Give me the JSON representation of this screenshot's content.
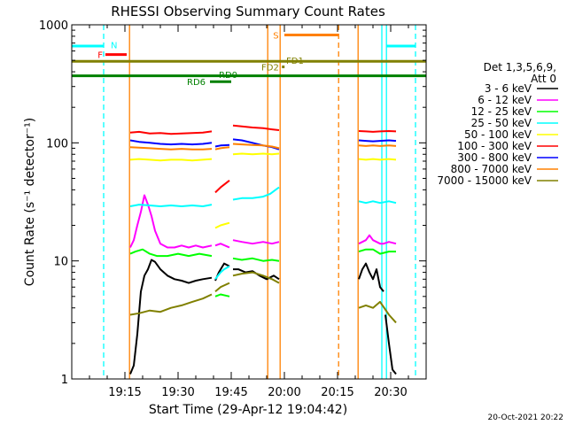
{
  "chart_data": {
    "type": "line",
    "title": "RHESSI Observing Summary Count Rates",
    "xlabel": "Start Time (29-Apr-12 19:04:42)",
    "ylabel": "Count Rate (s⁻¹ detector⁻¹)",
    "y_scale": "log",
    "ylim": [
      1,
      1000
    ],
    "xlim": [
      "19:04:42",
      "20:44:42"
    ],
    "x_ticks": [
      "19:15",
      "19:30",
      "19:45",
      "20:00",
      "20:15",
      "20:30"
    ],
    "x_tick_minutes": [
      15,
      30,
      45,
      60,
      75,
      90
    ],
    "y_ticks": [
      "1",
      "10",
      "100",
      "1000"
    ],
    "y_tick_values": [
      1,
      10,
      100,
      1000
    ],
    "footer": "20-Oct-2021 20:22",
    "legend": {
      "placement": "right",
      "header_lines": [
        "Det 1,3,5,6,9,",
        "Att 0"
      ],
      "items": [
        {
          "label": "3 - 6 keV",
          "color": "#000000"
        },
        {
          "label": "6 - 12 keV",
          "color": "#ff00ff"
        },
        {
          "label": "12 - 25 keV",
          "color": "#00ff00"
        },
        {
          "label": "25 - 50 keV",
          "color": "#00ffff"
        },
        {
          "label": "50 - 100 keV",
          "color": "#ffff00"
        },
        {
          "label": "100 - 300 keV",
          "color": "#ff0000"
        },
        {
          "label": "300 - 800 keV",
          "color": "#0000ff"
        },
        {
          "label": "800 - 7000 keV",
          "color": "#ff8000"
        },
        {
          "label": "7000 - 15000 keV",
          "color": "#808000"
        }
      ]
    },
    "series": [
      {
        "name": "3 - 6 keV",
        "color": "#000000",
        "segments": [
          {
            "x": [
              16.5,
              17.5,
              18.5,
              19.5,
              20.5,
              21.5,
              22.5,
              23.5,
              25,
              27,
              29,
              31,
              33,
              35,
              37,
              39.5
            ],
            "y": [
              1.1,
              1.3,
              2.4,
              5.5,
              7.5,
              8.5,
              10.2,
              9.8,
              8.5,
              7.5,
              7.0,
              6.8,
              6.5,
              6.8,
              7.0,
              7.2
            ]
          },
          {
            "x": [
              40.5,
              41.5,
              43,
              44.5
            ],
            "y": [
              6.8,
              8.0,
              9.5,
              9.0
            ]
          },
          {
            "x": [
              45.5,
              47,
              49,
              51,
              53,
              55,
              57,
              58.5
            ],
            "y": [
              8.5,
              8.5,
              8.0,
              8.2,
              7.5,
              7.0,
              7.5,
              7.0
            ]
          },
          {
            "x": [
              81,
              82,
              83,
              84,
              85,
              86,
              87,
              88
            ],
            "y": [
              7.0,
              8.5,
              9.5,
              8.0,
              7.0,
              8.5,
              6.0,
              5.5
            ]
          },
          {
            "x": [
              88.5,
              89.5,
              90.5,
              91.5
            ],
            "y": [
              3.5,
              2.0,
              1.2,
              1.1
            ]
          }
        ]
      },
      {
        "name": "6 - 12 keV",
        "color": "#ff00ff",
        "segments": [
          {
            "x": [
              16.5,
              17.5,
              18.5,
              19.5,
              20.5,
              21.5,
              22.5,
              23.5,
              25,
              27,
              29,
              31,
              33,
              35,
              37,
              39.5
            ],
            "y": [
              13,
              15,
              20,
              26,
              36,
              30,
              24,
              18,
              14,
              13,
              13,
              13.5,
              13,
              13.5,
              13,
              13.5
            ]
          },
          {
            "x": [
              40.5,
              42,
              44.5
            ],
            "y": [
              13.5,
              14,
              13
            ]
          },
          {
            "x": [
              45.5,
              48,
              51,
              54,
              56.5,
              58.5
            ],
            "y": [
              15,
              14.5,
              14,
              14.5,
              14,
              14.5
            ]
          },
          {
            "x": [
              81,
              82,
              83,
              84,
              85,
              86,
              87,
              88,
              89.5,
              91.5
            ],
            "y": [
              14,
              14.5,
              15,
              16.5,
              15,
              14.5,
              14,
              14,
              14.5,
              14
            ]
          }
        ]
      },
      {
        "name": "12 - 25 keV",
        "color": "#00ff00",
        "segments": [
          {
            "x": [
              16.5,
              18,
              20,
              22,
              24,
              27,
              30,
              33,
              36,
              39.5
            ],
            "y": [
              11.5,
              12,
              12.5,
              11.5,
              11,
              11,
              11.5,
              11,
              11.5,
              11
            ]
          },
          {
            "x": [
              40.5,
              42,
              44.5
            ],
            "y": [
              5.0,
              5.2,
              5.0
            ]
          },
          {
            "x": [
              45.5,
              48,
              51,
              54,
              56.5,
              58.5
            ],
            "y": [
              10.5,
              10.2,
              10.5,
              10,
              10.2,
              10
            ]
          },
          {
            "x": [
              81,
              83,
              85,
              87,
              89.5,
              91.5
            ],
            "y": [
              12,
              12.5,
              12.5,
              11.5,
              12,
              12
            ]
          }
        ]
      },
      {
        "name": "25 - 50 keV",
        "color": "#00ffff",
        "segments": [
          {
            "x": [
              16.5,
              19,
              22,
              25,
              28,
              31,
              34,
              37,
              39.5
            ],
            "y": [
              29,
              30,
              29.5,
              29,
              29.5,
              29,
              29.5,
              29,
              30
            ]
          },
          {
            "x": [
              40.5,
              42,
              43,
              44.5
            ],
            "y": [
              7.0,
              8.0,
              8.5,
              9.0
            ]
          },
          {
            "x": [
              45.5,
              48,
              51,
              54,
              56,
              57.5,
              58.5
            ],
            "y": [
              33,
              34,
              34,
              35,
              37,
              40,
              42
            ]
          },
          {
            "x": [
              81,
              83,
              85,
              87,
              89.5,
              91.5
            ],
            "y": [
              32,
              31,
              32,
              31,
              32,
              31
            ]
          }
        ]
      },
      {
        "name": "50 - 100 keV",
        "color": "#ffff00",
        "segments": [
          {
            "x": [
              16.5,
              19,
              22,
              25,
              28,
              31,
              34,
              37,
              39.5
            ],
            "y": [
              72,
              73,
              72,
              71,
              72,
              72,
              71,
              72,
              73
            ]
          },
          {
            "x": [
              40.5,
              42,
              44.5
            ],
            "y": [
              19,
              20,
              21
            ]
          },
          {
            "x": [
              45.5,
              48,
              51,
              54,
              56.5,
              58.5
            ],
            "y": [
              80,
              81,
              80,
              81,
              80,
              81
            ]
          },
          {
            "x": [
              81,
              83,
              85,
              87,
              89.5,
              91.5
            ],
            "y": [
              73,
              72,
              73,
              72,
              73,
              72
            ]
          }
        ]
      },
      {
        "name": "100 - 300 keV",
        "color": "#ff0000",
        "segments": [
          {
            "x": [
              16.5,
              19,
              22,
              25,
              28,
              31,
              34,
              37,
              39.5
            ],
            "y": [
              122,
              124,
              120,
              121,
              119,
              120,
              121,
              122,
              125
            ]
          },
          {
            "x": [
              40.5,
              42,
              44.5
            ],
            "y": [
              38,
              42,
              48
            ]
          },
          {
            "x": [
              45.5,
              48,
              51,
              54,
              56.5,
              58.5
            ],
            "y": [
              140,
              138,
              135,
              133,
              130,
              128
            ]
          },
          {
            "x": [
              81,
              83,
              85,
              87,
              89.5,
              91.5
            ],
            "y": [
              126,
              125,
              124,
              125,
              126,
              125
            ]
          }
        ]
      },
      {
        "name": "300 - 800 keV",
        "color": "#0000ff",
        "segments": [
          {
            "x": [
              16.5,
              19,
              22,
              25,
              28,
              31,
              34,
              37,
              39.5
            ],
            "y": [
              105,
              102,
              100,
              98,
              97,
              98,
              97,
              98,
              100
            ]
          },
          {
            "x": [
              40.5,
              42,
              44.5
            ],
            "y": [
              93,
              95,
              96
            ]
          },
          {
            "x": [
              45.5,
              48,
              51,
              54,
              56.5,
              58.5
            ],
            "y": [
              107,
              105,
              100,
              95,
              92,
              88
            ]
          },
          {
            "x": [
              81,
              83,
              85,
              87,
              89.5,
              91.5
            ],
            "y": [
              105,
              104,
              103,
              104,
              105,
              104
            ]
          }
        ]
      },
      {
        "name": "800 - 7000 keV",
        "color": "#ff8000",
        "segments": [
          {
            "x": [
              16.5,
              19,
              22,
              25,
              28,
              31,
              34,
              37,
              39.5
            ],
            "y": [
              92,
              91,
              90,
              89,
              88,
              89,
              88,
              88,
              89
            ]
          },
          {
            "x": [
              40.5,
              42,
              44.5
            ],
            "y": [
              88,
              90,
              92
            ]
          },
          {
            "x": [
              45.5,
              48,
              51,
              54,
              56.5,
              58.5
            ],
            "y": [
              98,
              97,
              96,
              95,
              93,
              90
            ]
          },
          {
            "x": [
              81,
              83,
              85,
              87,
              89.5,
              91.5
            ],
            "y": [
              95,
              94,
              95,
              94,
              95,
              94
            ]
          }
        ]
      },
      {
        "name": "7000 - 15000 keV",
        "color": "#808000",
        "segments": [
          {
            "x": [
              16.5,
              19,
              22,
              25,
              28,
              31,
              34,
              37,
              39.5
            ],
            "y": [
              3.5,
              3.6,
              3.8,
              3.7,
              4.0,
              4.2,
              4.5,
              4.8,
              5.2
            ]
          },
          {
            "x": [
              40.5,
              42,
              44.5
            ],
            "y": [
              5.5,
              6.0,
              6.5
            ]
          },
          {
            "x": [
              45.5,
              48,
              51,
              54,
              56.5,
              58.5
            ],
            "y": [
              7.5,
              7.8,
              8.0,
              7.5,
              7.0,
              6.5
            ]
          },
          {
            "x": [
              81,
              83,
              85,
              87,
              89.5,
              91.5
            ],
            "y": [
              4.0,
              4.2,
              4.0,
              4.5,
              3.5,
              3.0
            ]
          }
        ]
      }
    ],
    "vertical_markers": [
      {
        "x": 9.0,
        "color": "#00ffff",
        "style": "dashed"
      },
      {
        "x": 16.3,
        "color": "#ff8000",
        "style": "solid"
      },
      {
        "x": 55.3,
        "color": "#ff8000",
        "style": "solid"
      },
      {
        "x": 58.8,
        "color": "#ff8000",
        "style": "solid"
      },
      {
        "x": 75.3,
        "color": "#ff8000",
        "style": "dashed"
      },
      {
        "x": 80.8,
        "color": "#ff8000",
        "style": "solid"
      },
      {
        "x": 87.5,
        "color": "#00ffff",
        "style": "solid"
      },
      {
        "x": 88.8,
        "color": "#00ffff",
        "style": "solid"
      },
      {
        "x": 97.0,
        "color": "#00ffff",
        "style": "dashed"
      }
    ],
    "flag_bars": [
      {
        "label": "",
        "color": "#00ffff",
        "y": 660,
        "x_start": 0,
        "x_end": 9.0
      },
      {
        "label": "N",
        "color": "#00ffff",
        "y": 660,
        "x_start": 9.0,
        "x_end": 9.0,
        "label_x": 11.0,
        "label_y": 680
      },
      {
        "label": "",
        "color": "#00ffff",
        "y": 660,
        "x_start": 88.8,
        "x_end": 97.0
      },
      {
        "label": "F",
        "color": "#ff0000",
        "y": 560,
        "x_start": 9.5,
        "x_end": 15.5,
        "label_x": 7.3,
        "label_y": 560
      },
      {
        "label": "S",
        "color": "#ff8000",
        "y": 820,
        "x_start": 60.0,
        "x_end": 75.3,
        "label_x": 56.8,
        "label_y": 820
      },
      {
        "label": "FD1",
        "color": "#808000",
        "y": 490,
        "x_start": 0,
        "x_end": 100,
        "label_x": 60.5,
        "label_y": 500
      },
      {
        "label": "FD2",
        "color": "#808000",
        "y": 440,
        "x_start": 59.3,
        "x_end": 59.7,
        "label_x": 53.5,
        "label_y": 440
      },
      {
        "label": "RD0",
        "color": "#008000",
        "y": 370,
        "x_start": 0,
        "x_end": 100,
        "label_x": 41.5,
        "label_y": 380
      },
      {
        "label": "RD6",
        "color": "#008000",
        "y": 330,
        "x_start": 39.0,
        "x_end": 45.0,
        "label_x": 32.5,
        "label_y": 330
      }
    ]
  }
}
